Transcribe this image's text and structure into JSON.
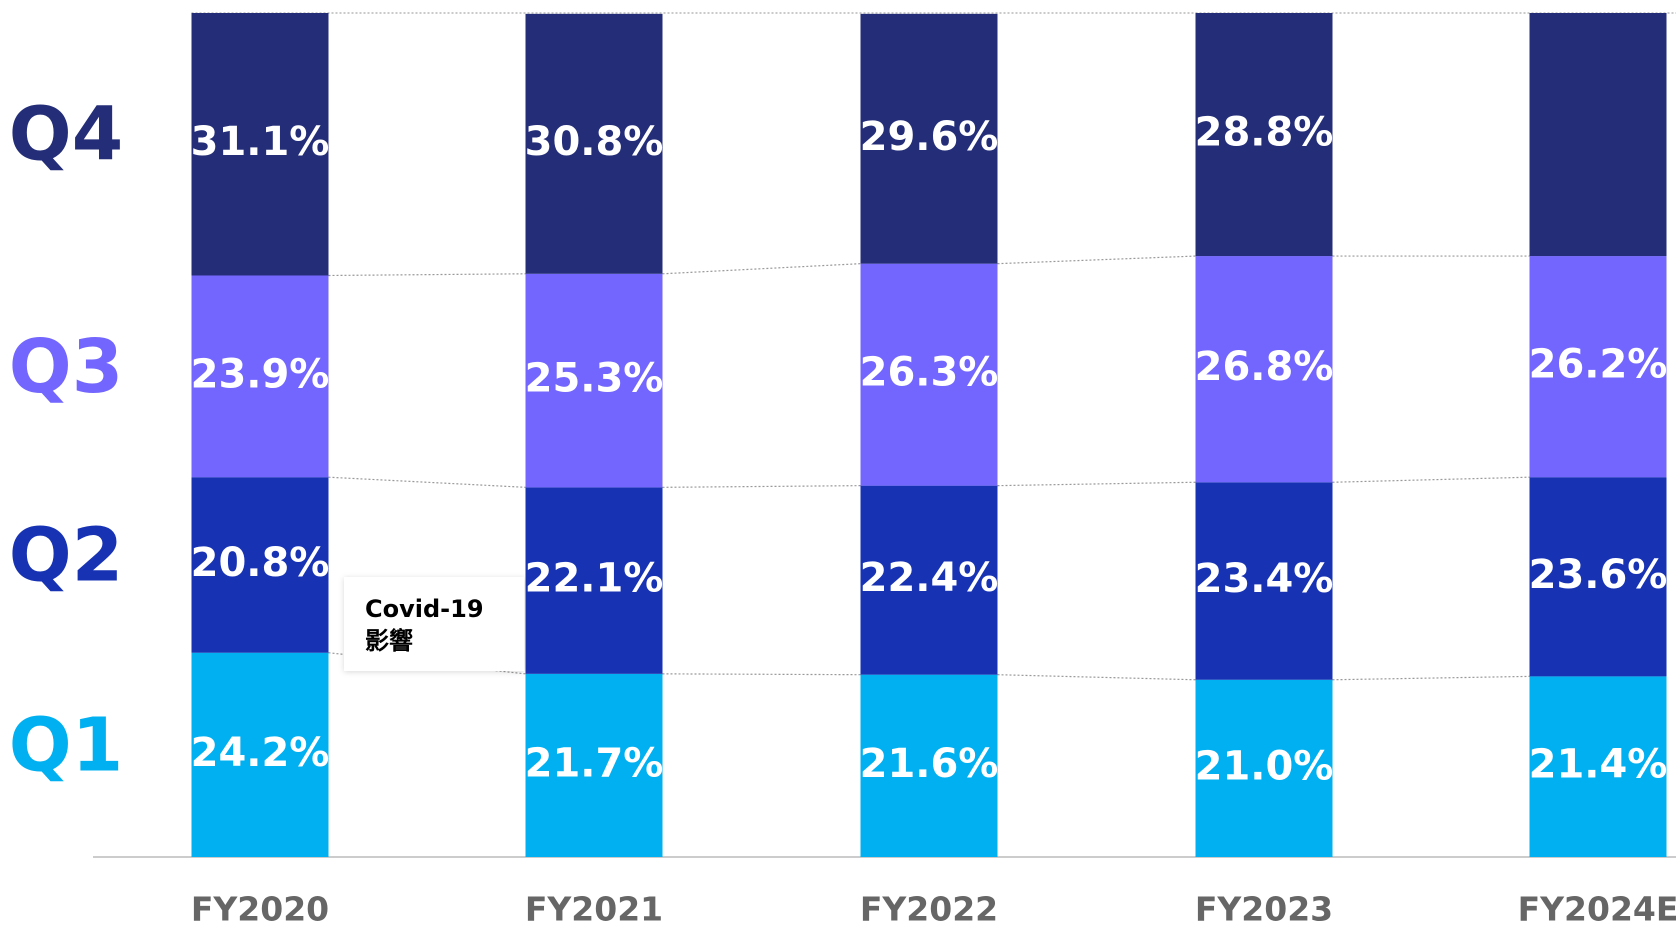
{
  "chart_data": {
    "type": "stacked_bar",
    "categories": [
      "FY2020",
      "FY2021",
      "FY2022",
      "FY2023",
      "FY2024E"
    ],
    "series": [
      {
        "name": "Q1",
        "color": "#00b0f0",
        "values": [
          24.2,
          21.7,
          21.6,
          21.0,
          21.4
        ],
        "value_labels": [
          "24.2%",
          "21.7%",
          "21.6%",
          "21.0%",
          "21.4%"
        ]
      },
      {
        "name": "Q2",
        "color": "#1733b4",
        "values": [
          20.8,
          22.1,
          22.4,
          23.4,
          23.6
        ],
        "value_labels": [
          "20.8%",
          "22.1%",
          "22.4%",
          "23.4%",
          "23.6%"
        ]
      },
      {
        "name": "Q3",
        "color": "#7366ff",
        "values": [
          23.9,
          25.3,
          26.3,
          26.8,
          26.2
        ],
        "value_labels": [
          "23.9%",
          "25.3%",
          "26.3%",
          "26.8%",
          "26.2%"
        ]
      },
      {
        "name": "Q4",
        "color": "#242e78",
        "values": [
          31.1,
          30.8,
          29.6,
          28.8,
          28.8
        ],
        "value_labels": [
          "31.1%",
          "30.8%",
          "29.6%",
          "28.8%",
          null
        ]
      }
    ],
    "ylim": [
      0,
      100
    ],
    "annotation": {
      "lines": [
        "Covid-19",
        "影響"
      ]
    }
  }
}
